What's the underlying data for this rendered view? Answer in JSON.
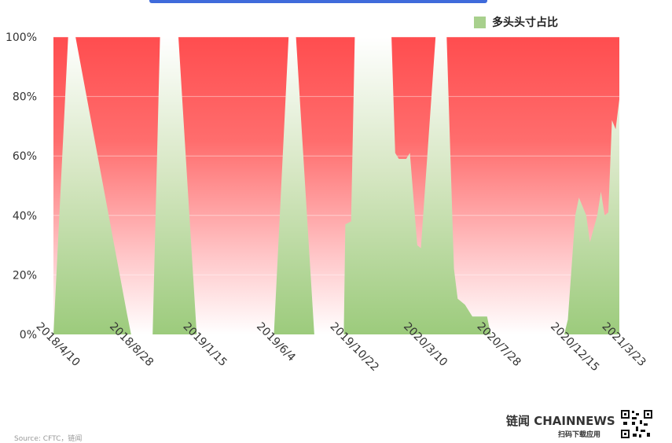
{
  "legend": {
    "label": "多头头寸占比",
    "color": "#a8d08d"
  },
  "brand": {
    "name": "链闻 CHAINNEWS",
    "tagline": "扫码下载应用"
  },
  "source": "Source: CFTC，链闻",
  "chart_data": {
    "type": "area",
    "ylabel": "",
    "ylim": [
      0,
      100
    ],
    "y_ticks": [
      "0%",
      "20%",
      "40%",
      "60%",
      "80%",
      "100%"
    ],
    "x_ticks": [
      "2018/4/10",
      "2018/8/28",
      "2019/1/15",
      "2019/6/4",
      "2019/10/22",
      "2020/3/10",
      "2020/7/28",
      "2020/12/15",
      "2021/3/23"
    ],
    "grid": true,
    "legend_position": "top-right",
    "series": [
      {
        "name": "多头头寸占比",
        "color": "#a8d08d",
        "points": [
          [
            "2018-04-10",
            0
          ],
          [
            "2018-05-08",
            100
          ],
          [
            "2018-05-22",
            100
          ],
          [
            "2018-08-28",
            7
          ],
          [
            "2018-09-05",
            0
          ],
          [
            "2018-10-16",
            0
          ],
          [
            "2018-10-30",
            100
          ],
          [
            "2018-12-04",
            100
          ],
          [
            "2019-01-08",
            0
          ],
          [
            "2019-06-04",
            0
          ],
          [
            "2019-07-02",
            100
          ],
          [
            "2019-07-16",
            100
          ],
          [
            "2019-08-20",
            0
          ],
          [
            "2019-10-15",
            0
          ],
          [
            "2019-10-18",
            37
          ],
          [
            "2019-10-29",
            38
          ],
          [
            "2019-11-05",
            100
          ],
          [
            "2020-01-14",
            100
          ],
          [
            "2020-01-21",
            61
          ],
          [
            "2020-01-28",
            59
          ],
          [
            "2020-02-11",
            59
          ],
          [
            "2020-02-18",
            61
          ],
          [
            "2020-03-03",
            30
          ],
          [
            "2020-03-10",
            29
          ],
          [
            "2020-04-07",
            100
          ],
          [
            "2020-04-28",
            100
          ],
          [
            "2020-05-12",
            22
          ],
          [
            "2020-05-19",
            12
          ],
          [
            "2020-06-02",
            10
          ],
          [
            "2020-06-16",
            6
          ],
          [
            "2020-07-14",
            6
          ],
          [
            "2020-07-21",
            0
          ],
          [
            "2020-12-08",
            0
          ],
          [
            "2020-12-15",
            5
          ],
          [
            "2020-12-29",
            40
          ],
          [
            "2021-01-05",
            46
          ],
          [
            "2021-01-19",
            40
          ],
          [
            "2021-01-26",
            31
          ],
          [
            "2021-02-09",
            40
          ],
          [
            "2021-02-16",
            48
          ],
          [
            "2021-02-23",
            40
          ],
          [
            "2021-03-02",
            41
          ],
          [
            "2021-03-09",
            72
          ],
          [
            "2021-03-16",
            69
          ],
          [
            "2021-03-23",
            79
          ]
        ]
      }
    ]
  }
}
